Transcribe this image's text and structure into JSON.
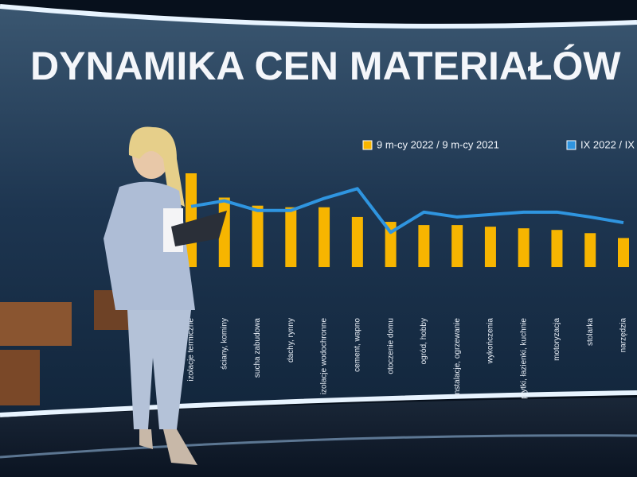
{
  "chart_data": {
    "type": "bar",
    "title": "DYNAMIKA CEN MATERIAŁÓW",
    "categories": [
      "izolacje termiczne",
      "ściany, kominy",
      "sucha zabudowa",
      "dachy, rynny",
      "izolacje wodochronne",
      "cement, wapno",
      "otoczenie domu",
      "ogród, hobby",
      "instalacje, ogrzewanie",
      "wykończenia",
      "płytki, łazienki, kuchnie",
      "motoryzacja",
      "stolarka",
      "narzędzia"
    ],
    "series": [
      {
        "name": "9 m-cy 2022 / 9 m-cy 2021",
        "color": "#f7b500",
        "type": "bar",
        "values": [
          58,
          43,
          38,
          37,
          37,
          31,
          28,
          26,
          26,
          25,
          24,
          23,
          21,
          18
        ]
      },
      {
        "name": "IX 2022 / IX",
        "color": "#2f95e0",
        "type": "line",
        "values": [
          37.5,
          41,
          35,
          35,
          42.5,
          48.5,
          21.5,
          34,
          31,
          32.5,
          34,
          34,
          31,
          27.5
        ]
      }
    ]
  }
}
